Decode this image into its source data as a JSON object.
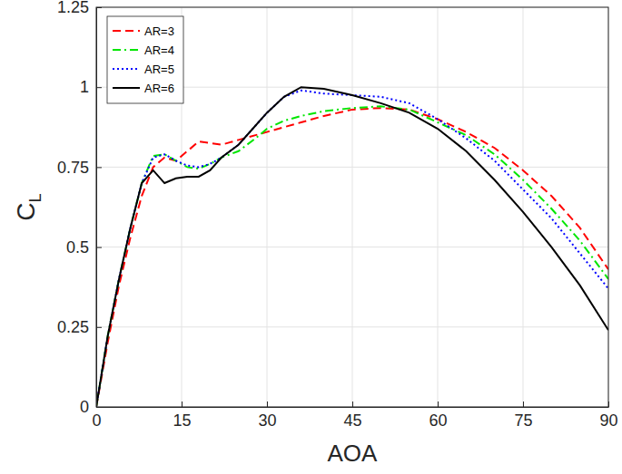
{
  "chart_data": {
    "type": "line",
    "x_label": "AOA",
    "y_label": "CL",
    "x": [
      0,
      2,
      4,
      6,
      8,
      10,
      12,
      14,
      16,
      18,
      20,
      22,
      25,
      28,
      30,
      33,
      36,
      40,
      45,
      50,
      55,
      60,
      65,
      70,
      75,
      80,
      85,
      90
    ],
    "series": [
      {
        "name": "AR=3",
        "color": "#ff0000",
        "line_style": "dashed",
        "values": [
          0,
          0.2,
          0.38,
          0.53,
          0.66,
          0.75,
          0.78,
          0.77,
          0.8,
          0.83,
          0.825,
          0.82,
          0.835,
          0.85,
          0.86,
          0.875,
          0.89,
          0.91,
          0.93,
          0.935,
          0.93,
          0.9,
          0.86,
          0.81,
          0.74,
          0.66,
          0.56,
          0.43
        ]
      },
      {
        "name": "AR=4",
        "color": "#00e600",
        "line_style": "dashdot",
        "values": [
          0,
          0.22,
          0.4,
          0.56,
          0.7,
          0.785,
          0.79,
          0.77,
          0.75,
          0.745,
          0.76,
          0.78,
          0.8,
          0.84,
          0.87,
          0.895,
          0.91,
          0.925,
          0.935,
          0.94,
          0.93,
          0.89,
          0.85,
          0.79,
          0.71,
          0.62,
          0.52,
          0.4
        ]
      },
      {
        "name": "AR=5",
        "color": "#0000ff",
        "line_style": "dotted",
        "values": [
          0,
          0.22,
          0.4,
          0.56,
          0.7,
          0.78,
          0.79,
          0.77,
          0.755,
          0.75,
          0.76,
          0.78,
          0.82,
          0.88,
          0.92,
          0.97,
          0.99,
          0.98,
          0.975,
          0.97,
          0.95,
          0.9,
          0.84,
          0.77,
          0.68,
          0.59,
          0.48,
          0.37
        ]
      },
      {
        "name": "AR=6",
        "color": "#000000",
        "line_style": "solid",
        "values": [
          0,
          0.22,
          0.4,
          0.56,
          0.7,
          0.74,
          0.7,
          0.715,
          0.72,
          0.72,
          0.74,
          0.78,
          0.82,
          0.88,
          0.92,
          0.97,
          1.0,
          0.995,
          0.975,
          0.95,
          0.92,
          0.87,
          0.8,
          0.71,
          0.61,
          0.5,
          0.38,
          0.24
        ]
      }
    ],
    "xlim": [
      0,
      90
    ],
    "ylim": [
      0,
      1.25
    ],
    "xticks": [
      0,
      15,
      30,
      45,
      60,
      75,
      90
    ],
    "yticks": [
      0,
      0.25,
      0.5,
      0.75,
      1,
      1.25
    ],
    "grid": true,
    "legend": "top-left"
  }
}
